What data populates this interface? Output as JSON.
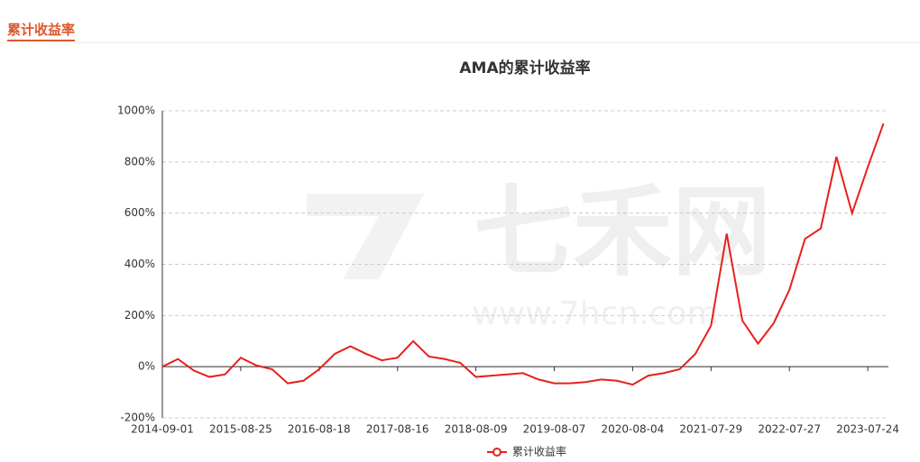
{
  "header": {
    "tab": "累计收益率"
  },
  "chart_data": {
    "type": "line",
    "title": "AMA的累计收益率",
    "watermark": {
      "text": "七禾网",
      "url": "www.7hcn.com"
    },
    "categories": [
      "2014-09-01",
      null,
      null,
      null,
      null,
      "2015-08-25",
      null,
      null,
      null,
      null,
      "2016-08-18",
      null,
      null,
      null,
      null,
      "2017-08-16",
      null,
      null,
      null,
      null,
      "2018-08-09",
      null,
      null,
      null,
      null,
      "2019-08-07",
      null,
      null,
      null,
      null,
      "2020-08-04",
      null,
      null,
      null,
      null,
      "2021-07-29",
      null,
      null,
      null,
      null,
      "2022-07-27",
      null,
      null,
      null,
      null,
      "2023-07-24",
      null
    ],
    "series": [
      {
        "name": "累计收益率",
        "color": "#e8201a",
        "values": [
          0,
          30,
          -15,
          -40,
          -30,
          35,
          5,
          -10,
          -65,
          -55,
          -10,
          50,
          80,
          50,
          25,
          35,
          100,
          40,
          30,
          15,
          -40,
          -35,
          -30,
          -25,
          -50,
          -65,
          -65,
          -60,
          -50,
          -55,
          -70,
          -35,
          -25,
          -10,
          50,
          160,
          520,
          180,
          90,
          170,
          300,
          500,
          540,
          820,
          600,
          780,
          950
        ]
      }
    ],
    "ylim": [
      -200,
      1000
    ],
    "yticks": [
      {
        "value": -200,
        "label": "-200%"
      },
      {
        "value": 0,
        "label": "0%"
      },
      {
        "value": 200,
        "label": "200%"
      },
      {
        "value": 400,
        "label": "400%"
      },
      {
        "value": 600,
        "label": "600%"
      },
      {
        "value": 800,
        "label": "800%"
      },
      {
        "value": 1000,
        "label": "1000%"
      }
    ],
    "grid": true
  }
}
